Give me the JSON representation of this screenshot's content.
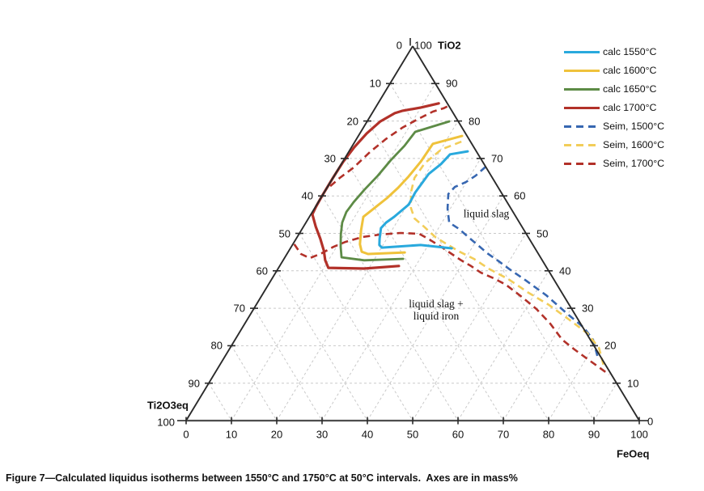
{
  "caption": "Figure 7—Calculated liquidus isotherms between 1550°C and 1750°C at 50°C intervals.  Axes are in mass%",
  "legend": {
    "items": [
      {
        "label": "calc 1550°C",
        "color": "#29A9DD",
        "dashed": false
      },
      {
        "label": "calc 1600°C",
        "color": "#EFC23B",
        "dashed": false
      },
      {
        "label": "calc 1650°C",
        "color": "#5D8B46",
        "dashed": false
      },
      {
        "label": "calc 1700°C",
        "color": "#B23129",
        "dashed": false
      },
      {
        "label": "Seim, 1500°C",
        "color": "#3767B1",
        "dashed": true
      },
      {
        "label": "Seim, 1600°C",
        "color": "#F2CD59",
        "dashed": true
      },
      {
        "label": "Seim, 1700°C",
        "color": "#B23129",
        "dashed": true
      }
    ]
  },
  "chart_data": {
    "type": "line",
    "subtype": "ternary-isotherm-diagram",
    "units": "mass%",
    "grid_step": 10,
    "style": {
      "grid_color": "#c9c9c9",
      "edge_color": "#2a2a2a",
      "bottom_edge_color": "#4d4d4d"
    },
    "axes": {
      "top_title": "TiO2",
      "left": {
        "title": "Ti2O3eq",
        "top_label": "0",
        "bottom_label": "100",
        "edge_ticks": [
          10,
          20,
          30,
          40,
          50,
          60,
          70,
          80,
          90
        ]
      },
      "right": {
        "top_label": "100",
        "bottom_label": "0",
        "edge_ticks": [
          90,
          80,
          70,
          60,
          50,
          40,
          30,
          20,
          10
        ]
      },
      "bottom": {
        "title": "FeOeq",
        "ticks": [
          0,
          10,
          20,
          30,
          40,
          50,
          60,
          70,
          80,
          90,
          100
        ]
      }
    },
    "regions": [
      {
        "label": "liquid slag"
      },
      {
        "line1": "liquid slag +",
        "line2": "liquid iron"
      }
    ],
    "series": [
      {
        "name": "Seim, 1500°C",
        "color": "#3767B1",
        "dashed": true,
        "width": 2.6,
        "segments": [
          [
            [
              67.8,
              32.2
            ],
            [
              65.4,
              31.2
            ],
            [
              63.7,
              29.9
            ],
            [
              62.4,
              28.1
            ],
            [
              60.5,
              27.6
            ],
            [
              56.6,
              29.4
            ],
            [
              52.9,
              31.6
            ],
            [
              51.2,
              34.6
            ],
            [
              49.2,
              37.5
            ],
            [
              46.9,
              40.9
            ],
            [
              44.7,
              44.1
            ],
            [
              42.5,
              47.8
            ],
            [
              40.4,
              51.2
            ],
            [
              37.4,
              56.3
            ],
            [
              33.5,
              62.7
            ],
            [
              28.7,
              69.6
            ],
            [
              24.8,
              75.4
            ],
            [
              21.6,
              79.0
            ],
            [
              17.3,
              82.1
            ]
          ]
        ]
      },
      {
        "name": "Seim, 1600°C",
        "color": "#F2CD59",
        "dashed": true,
        "width": 2.6,
        "segments": [
          [
            [
              74.5,
              23.5
            ],
            [
              72.4,
              20.1
            ],
            [
              68.7,
              18.3
            ],
            [
              64.8,
              18.0
            ],
            [
              61.1,
              19.1
            ],
            [
              56.8,
              21.2
            ],
            [
              54.0,
              23.4
            ],
            [
              51.8,
              26.6
            ],
            [
              49.0,
              30.5
            ],
            [
              47.1,
              34.0
            ],
            [
              45.1,
              37.8
            ],
            [
              43.2,
              41.9
            ],
            [
              40.4,
              46.8
            ],
            [
              37.8,
              52.2
            ],
            [
              34.3,
              58.2
            ],
            [
              30.9,
              64.6
            ],
            [
              27.0,
              71.0
            ],
            [
              23.3,
              76.9
            ],
            [
              19.4,
              81.4
            ],
            [
              14.7,
              84.8
            ]
          ]
        ]
      },
      {
        "name": "Seim, 1700°C",
        "color": "#B23129",
        "dashed": true,
        "width": 2.6,
        "segments": [
          [
            [
              62.6,
              0.5
            ],
            [
              64.8,
              1.5
            ],
            [
              67.6,
              3.2
            ],
            [
              71.7,
              4.7
            ],
            [
              75.2,
              6.5
            ],
            [
              78.2,
              8.6
            ],
            [
              80.6,
              11.0
            ],
            [
              82.5,
              13.2
            ],
            [
              83.4,
              15.1
            ],
            [
              84.0,
              15.8
            ]
          ],
          [
            [
              47.1,
              0.3
            ],
            [
              44.5,
              3.1
            ],
            [
              43.4,
              5.6
            ],
            [
              44.7,
              7.6
            ],
            [
              46.4,
              9.3
            ],
            [
              47.7,
              11.3
            ],
            [
              49.0,
              14.3
            ],
            [
              49.7,
              18.0
            ],
            [
              50.1,
              22.3
            ],
            [
              49.9,
              26.5
            ],
            [
              48.2,
              29.8
            ],
            [
              46.4,
              33.1
            ],
            [
              44.7,
              36.0
            ],
            [
              42.8,
              39.3
            ],
            [
              41.3,
              42.2
            ],
            [
              39.5,
              45.3
            ],
            [
              38.0,
              48.9
            ],
            [
              36.3,
              52.4
            ],
            [
              33.0,
              57.6
            ],
            [
              29.8,
              62.4
            ],
            [
              25.9,
              67.4
            ],
            [
              21.6,
              72.2
            ],
            [
              19.0,
              76.2
            ],
            [
              16.6,
              80.1
            ],
            [
              14.3,
              83.9
            ],
            [
              12.3,
              87.2
            ]
          ]
        ]
      },
      {
        "name": "calc 1550°C",
        "color": "#29A9DD",
        "dashed": false,
        "width": 3.0,
        "segments": [
          [
            [
              71.9,
              26.2
            ],
            [
              71.1,
              22.7
            ],
            [
              68.5,
              22.0
            ],
            [
              65.9,
              20.6
            ],
            [
              60.9,
              20.1
            ],
            [
              57.7,
              20.3
            ],
            [
              54.4,
              18.7
            ],
            [
              52.9,
              17.7
            ],
            [
              51.4,
              17.3
            ],
            [
              48.6,
              18.4
            ],
            [
              46.9,
              19.2
            ],
            [
              46.2,
              20.1
            ],
            [
              46.9,
              28.3
            ],
            [
              46.0,
              35.6
            ]
          ]
        ]
      },
      {
        "name": "calc 1600°C",
        "color": "#EFC23B",
        "dashed": false,
        "width": 3.0,
        "segments": [
          [
            [
              76.0,
              22.9
            ],
            [
              73.9,
              17.5
            ],
            [
              69.1,
              17.2
            ],
            [
              65.2,
              16.5
            ],
            [
              62.2,
              15.7
            ],
            [
              59.4,
              14.6
            ],
            [
              56.6,
              13.1
            ],
            [
              54.4,
              11.9
            ],
            [
              50.8,
              13.2
            ],
            [
              47.1,
              14.8
            ],
            [
              45.1,
              16.2
            ],
            [
              44.5,
              17.9
            ],
            [
              44.9,
              25.8
            ]
          ]
        ]
      },
      {
        "name": "calc 1650°C",
        "color": "#5D8B46",
        "dashed": false,
        "width": 2.8,
        "segments": [
          [
            [
              79.9,
              18.1
            ],
            [
              77.1,
              12.0
            ],
            [
              73.4,
              11.5
            ],
            [
              69.5,
              10.4
            ],
            [
              65.4,
              9.6
            ],
            [
              61.6,
              8.5
            ],
            [
              58.3,
              7.8
            ],
            [
              55.7,
              7.5
            ],
            [
              52.9,
              8.0
            ],
            [
              49.7,
              9.3
            ],
            [
              46.4,
              10.9
            ],
            [
              43.6,
              12.5
            ],
            [
              42.8,
              17.9
            ],
            [
              43.2,
              26.3
            ]
          ]
        ]
      },
      {
        "name": "calc 1700°C",
        "color": "#B23129",
        "dashed": false,
        "width": 3.2,
        "segments": [
          [
            [
              84.7,
              13.4
            ],
            [
              83.6,
              10.0
            ],
            [
              82.7,
              6.3
            ],
            [
              82.1,
              5.0
            ],
            [
              79.9,
              2.9
            ],
            [
              76.7,
              1.5
            ],
            [
              73.0,
              0.6
            ],
            [
              69.1,
              0.1
            ],
            [
              64.8,
              0.0
            ],
            [
              60.0,
              0.0
            ],
            [
              57.2,
              0.1
            ],
            [
              55.1,
              0.3
            ],
            [
              51.8,
              2.7
            ],
            [
              48.6,
              5.3
            ],
            [
              45.4,
              7.7
            ],
            [
              42.8,
              9.3
            ],
            [
              40.8,
              11.0
            ],
            [
              40.6,
              19.0
            ],
            [
              41.3,
              26.3
            ]
          ]
        ]
      }
    ]
  }
}
